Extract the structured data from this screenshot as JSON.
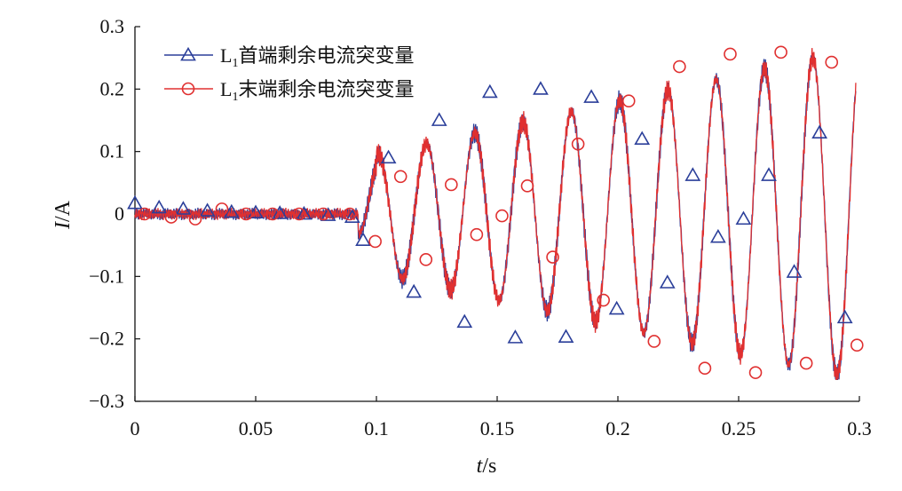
{
  "chart_data": {
    "type": "line",
    "xlabel_var": "t",
    "xlabel_unit": "/s",
    "ylabel_var": "I",
    "ylabel_unit": "/A",
    "xlim": [
      0,
      0.3
    ],
    "ylim": [
      -0.3,
      0.3
    ],
    "x_ticks": [
      0,
      0.05,
      0.1,
      0.15,
      0.2,
      0.25,
      0.3
    ],
    "x_tick_labels": [
      "0",
      "0.05",
      "0.1",
      "0.15",
      "0.2",
      "0.25",
      "0.3"
    ],
    "y_ticks": [
      -0.3,
      -0.2,
      -0.1,
      0,
      0.1,
      0.2,
      0.3
    ],
    "y_tick_labels": [
      "−0.3",
      "−0.2",
      "−0.1",
      "0",
      "0.1",
      "0.2",
      "0.3"
    ],
    "grid": false,
    "legend_position": "top-left",
    "series": [
      {
        "name_prefix": "L",
        "name_sub": "1",
        "name_rest": "首端剩余电流突变量",
        "color": "#2b3f9a",
        "marker": "triangle",
        "markers": [
          [
            0.0,
            0.017
          ],
          [
            0.01,
            0.01
          ],
          [
            0.02,
            0.008
          ],
          [
            0.03,
            0.005
          ],
          [
            0.04,
            0.003
          ],
          [
            0.05,
            0.002
          ],
          [
            0.06,
            0.001
          ],
          [
            0.07,
            0.0
          ],
          [
            0.08,
            -0.002
          ],
          [
            0.09,
            -0.005
          ],
          [
            0.0945,
            -0.042
          ],
          [
            0.105,
            0.09
          ],
          [
            0.1155,
            -0.125
          ],
          [
            0.126,
            0.15
          ],
          [
            0.1365,
            -0.173
          ],
          [
            0.147,
            0.195
          ],
          [
            0.1575,
            -0.198
          ],
          [
            0.168,
            0.2
          ],
          [
            0.1785,
            -0.197
          ],
          [
            0.189,
            0.187
          ],
          [
            0.1995,
            -0.152
          ],
          [
            0.21,
            0.12
          ],
          [
            0.2205,
            -0.11
          ],
          [
            0.231,
            0.062
          ],
          [
            0.2415,
            -0.037
          ],
          [
            0.252,
            -0.008
          ],
          [
            0.2625,
            0.062
          ],
          [
            0.273,
            -0.093
          ],
          [
            0.2835,
            0.13
          ],
          [
            0.294,
            -0.166
          ]
        ]
      },
      {
        "name_prefix": "L",
        "name_sub": "1",
        "name_rest": "末端剩余电流突变量",
        "color": "#e03030",
        "marker": "circle",
        "markers": [
          [
            0.004,
            0.0
          ],
          [
            0.015,
            -0.005
          ],
          [
            0.025,
            -0.008
          ],
          [
            0.036,
            0.008
          ],
          [
            0.046,
            0.0
          ],
          [
            0.057,
            0.0
          ],
          [
            0.068,
            0.0
          ],
          [
            0.078,
            0.0
          ],
          [
            0.089,
            0.0
          ],
          [
            0.0995,
            -0.044
          ],
          [
            0.11,
            0.06
          ],
          [
            0.1205,
            -0.073
          ],
          [
            0.131,
            0.047
          ],
          [
            0.1415,
            -0.033
          ],
          [
            0.152,
            -0.003
          ],
          [
            0.1625,
            0.045
          ],
          [
            0.173,
            -0.069
          ],
          [
            0.1835,
            0.112
          ],
          [
            0.194,
            -0.138
          ],
          [
            0.2045,
            0.181
          ],
          [
            0.215,
            -0.204
          ],
          [
            0.2255,
            0.236
          ],
          [
            0.236,
            -0.247
          ],
          [
            0.2465,
            0.256
          ],
          [
            0.257,
            -0.254
          ],
          [
            0.2675,
            0.259
          ],
          [
            0.278,
            -0.239
          ],
          [
            0.2885,
            0.243
          ],
          [
            0.299,
            -0.21
          ]
        ]
      }
    ]
  }
}
